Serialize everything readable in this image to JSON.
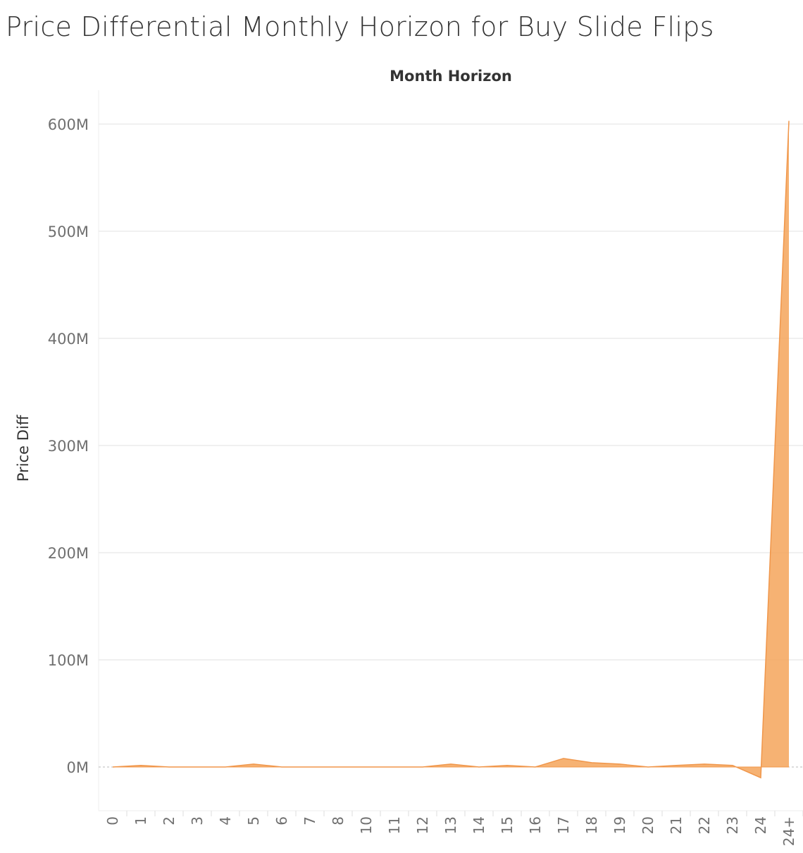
{
  "page": {
    "title": "Price Differential Monthly Horizon for Buy Slide Flips"
  },
  "chart_data": {
    "type": "area",
    "title": "Price Differential Monthly Horizon for Buy Slide Flips",
    "xlabel": "Month Horizon",
    "ylabel": "Price Diff",
    "categories": [
      "0",
      "1",
      "2",
      "3",
      "4",
      "5",
      "6",
      "7",
      "8",
      "10",
      "11",
      "12",
      "13",
      "14",
      "15",
      "16",
      "17",
      "18",
      "19",
      "20",
      "21",
      "22",
      "23",
      "24",
      "24+"
    ],
    "series": [
      {
        "values": [
          0,
          1.5,
          0,
          0,
          0,
          2.7,
          0,
          0,
          0,
          0,
          0,
          0,
          2.7,
          0,
          1.5,
          0,
          8,
          4,
          2.7,
          0,
          1.5,
          2.7,
          1.5,
          -10,
          603
        ],
        "color": "#f5a55a"
      }
    ],
    "value_unit": "M",
    "yticks": [
      0,
      100,
      200,
      300,
      400,
      500,
      600
    ],
    "ytick_labels": [
      "0M",
      "100M",
      "200M",
      "300M",
      "400M",
      "500M",
      "600M"
    ],
    "ylim": [
      -40,
      632
    ],
    "grid": true,
    "legend": "none",
    "colors": {
      "area_fill": "#f5a55a",
      "area_stroke": "#f0964a",
      "grid": "#ebebeb",
      "zero_line": "#b8b8b8"
    }
  }
}
